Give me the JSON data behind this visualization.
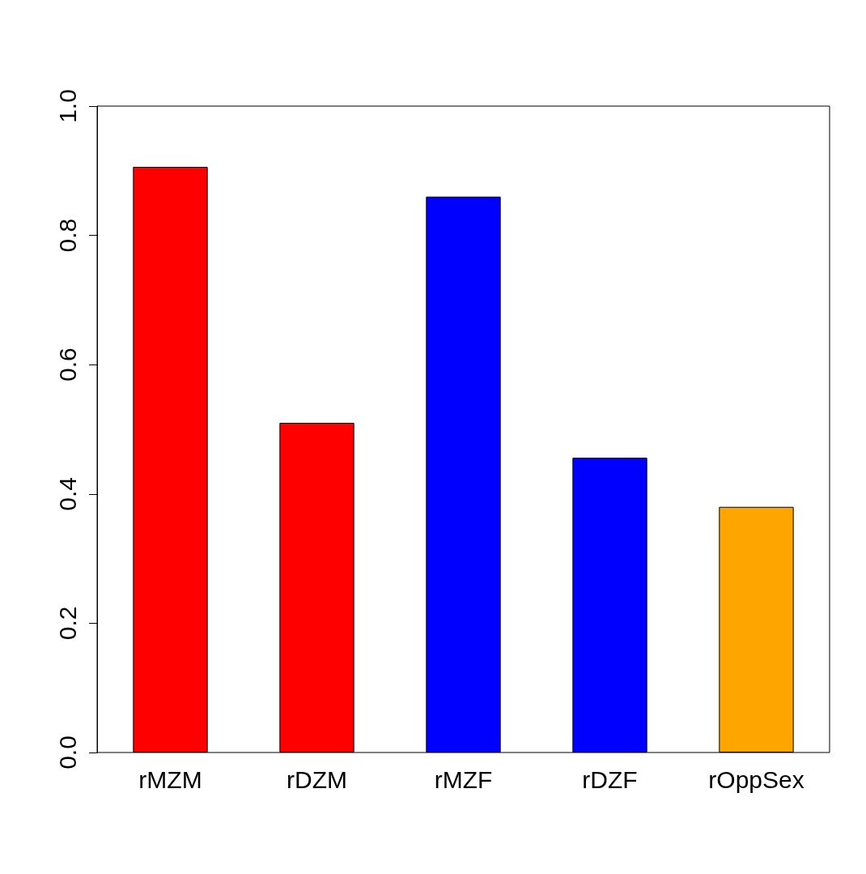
{
  "chart_data": {
    "type": "bar",
    "categories": [
      "rMZM",
      "rDZM",
      "rMZF",
      "rDZF",
      "rOppSex"
    ],
    "values": [
      0.906,
      0.51,
      0.86,
      0.456,
      0.38
    ],
    "colors": [
      "#ff0000",
      "#ff0000",
      "#0000ff",
      "#0000ff",
      "#ffa500"
    ],
    "ylim": [
      0,
      1
    ],
    "yticks": [
      {
        "value": 0,
        "label": "0.0"
      },
      0.2,
      0.4,
      0.6,
      0.8,
      {
        "value": 1,
        "label": "1.0"
      }
    ],
    "grid": false
  }
}
